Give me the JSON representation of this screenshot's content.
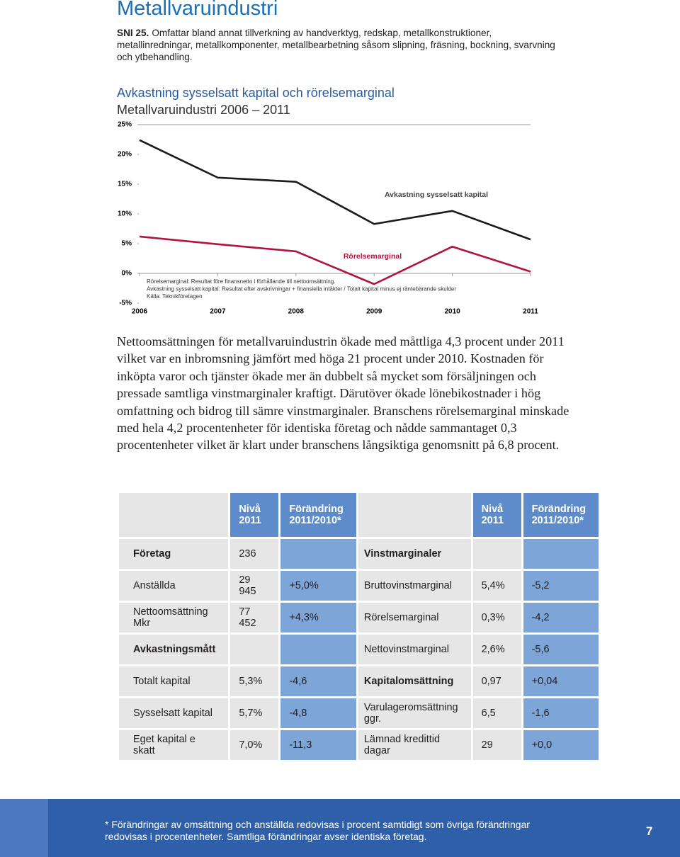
{
  "header": {
    "title": "Metallvaruindustri",
    "sni_label": "SNI 25.",
    "text": "Omfattar bland annat tillverkning av handverktyg, redskap, metallkonstruktioner, metallinredningar, metallkomponenter, metallbearbetning såsom slipning, fräsning, bockning, svarvning och ytbehandling."
  },
  "chart_data": {
    "type": "line",
    "title": "Avkastning sysselsatt kapital och rörelsemarginal",
    "subtitle": "Metallvaruindustri 2006 – 2011",
    "categories": [
      "2006",
      "2007",
      "2008",
      "2009",
      "2010",
      "2011"
    ],
    "series": [
      {
        "name": "Avkastning sysselsatt kapital",
        "color": "#1a1a1a",
        "values": [
          22.4,
          16.1,
          15.4,
          8.3,
          10.5,
          5.7
        ]
      },
      {
        "name": "Rörelsemarginal",
        "color": "#b0143c",
        "values": [
          6.2,
          4.9,
          3.7,
          -1.8,
          4.5,
          0.3
        ]
      }
    ],
    "ylim": [
      -5,
      25
    ],
    "yticks": [
      {
        "value": -5,
        "label": "-5%"
      },
      {
        "value": 0,
        "label": "0%"
      },
      {
        "value": 5,
        "label": "5%"
      },
      {
        "value": 10,
        "label": "10%"
      },
      {
        "value": 15,
        "label": "15%"
      },
      {
        "value": 20,
        "label": "20%"
      },
      {
        "value": 25,
        "label": "25%"
      }
    ],
    "grid": false,
    "notes": [
      "Rörelsemarginal: Resultat före finansnetto i förhållande till nettoomsättning.",
      "Avkastning sysselsatt kapital: Resultat efter avskrivningar + finansiella intäkter / Totalt kapital minus ej räntebärande skulder",
      "Källa: Teknikföretagen"
    ]
  },
  "body": {
    "text": "Nettoomsättningen för metallvaruindustrin ökade med måttliga 4,3 procent under 2011 vilket var en inbromsning jämfört med höga 21 procent under 2010. Kostnaden för inköpta varor och tjänster ökade mer än dubbelt så mycket som försäljningen och pressade samtliga vinstmarginaler kraftigt. Därutöver ökade lönebikostnader i hög omfattning och bidrog till sämre vinstmarginaler. Branschens rörelsemarginal minskade med hela 4,2 procentenheter för identiska företag och nådde sammantaget 0,3 procentenheter vilket är klart under branschens långsiktiga genomsnitt på 6,8 procent."
  },
  "table": {
    "header": [
      null,
      "Nivå 2011",
      "Förändring 2011/2010*",
      null,
      "Nivå 2011",
      "Förändring 2011/2010*"
    ],
    "rows": [
      [
        "Företag",
        "236",
        null,
        "Vinstmarginaler",
        null,
        null
      ],
      [
        "Anställda",
        "29 945",
        "+5,0%",
        "Bruttovinstmarginal",
        "5,4%",
        "-5,2"
      ],
      [
        "Nettoomsättning Mkr",
        "77 452",
        "+4,3%",
        "Rörelsemarginal",
        "0,3%",
        "-4,2"
      ],
      [
        "Avkastningsmått",
        null,
        null,
        "Nettovinstmarginal",
        "2,6%",
        "-5,6"
      ],
      [
        "Totalt kapital",
        "5,3%",
        "-4,6",
        "Kapitalomsättning",
        "0,97",
        "+0,04"
      ],
      [
        "Sysselsatt kapital",
        "5,7%",
        "-4,8",
        "Varulageromsättning ggr.",
        "6,5",
        "-1,6"
      ],
      [
        "Eget kapital e skatt",
        "7,0%",
        "-11,3",
        "Lämnad kredittid dagar",
        "29",
        "+0,0"
      ]
    ]
  },
  "footer": {
    "note": "* Förändringar av omsättning och anställda redovisas i procent samtidigt som övriga förändringar redovisas i procentenheter. Samtliga förändringar avser identiska företag.",
    "page_number": "7"
  }
}
